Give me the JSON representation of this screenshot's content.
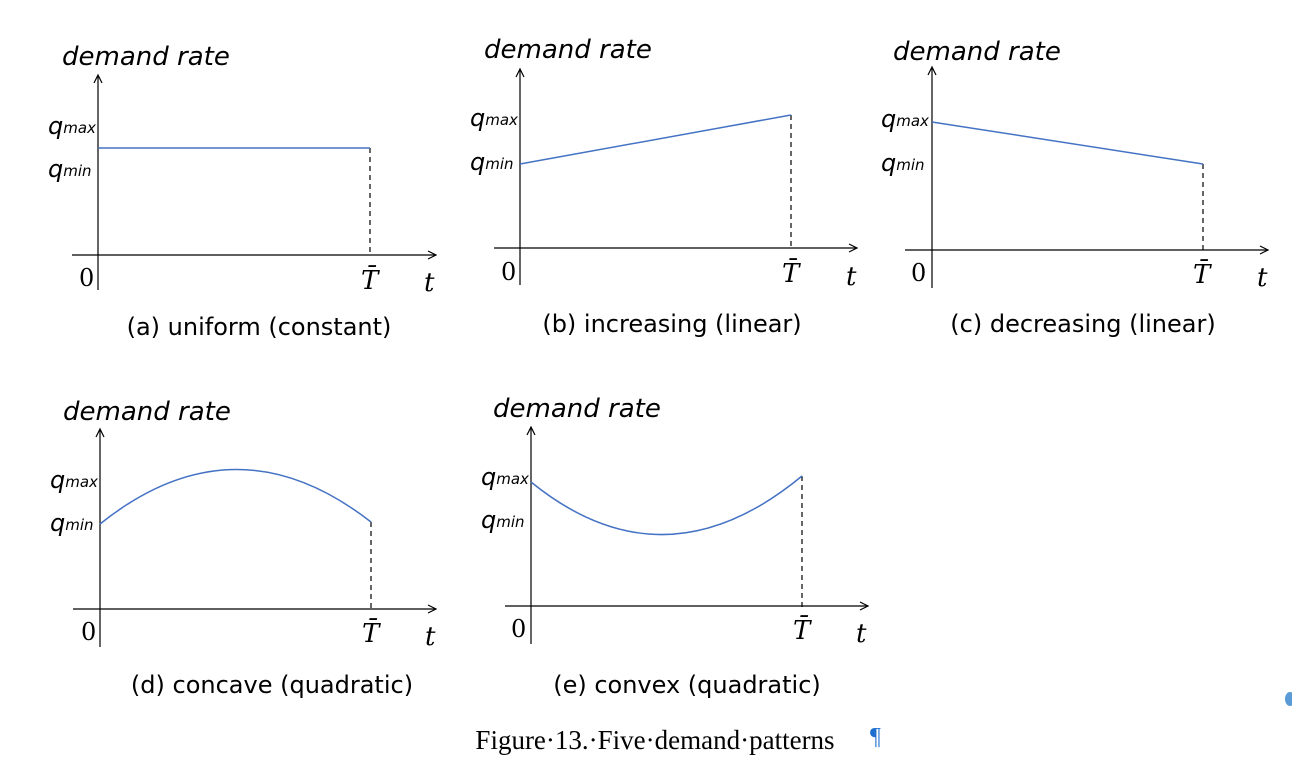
{
  "panels": [
    {
      "ylabel": "demand rate",
      "qmax": {
        "q": "q",
        "sub": "max"
      },
      "qmin": {
        "q": "q",
        "sub": "min"
      },
      "zero": "0",
      "tbar": "T̄",
      "t": "t",
      "caption": "(a) uniform (constant)",
      "pattern": "uniform"
    },
    {
      "ylabel": "demand rate",
      "qmax": {
        "q": "q",
        "sub": "max"
      },
      "qmin": {
        "q": "q",
        "sub": "min"
      },
      "zero": "0",
      "tbar": "T̄",
      "t": "t",
      "caption": "(b) increasing (linear)",
      "pattern": "increasing"
    },
    {
      "ylabel": "demand rate",
      "qmax": {
        "q": "q",
        "sub": "max"
      },
      "qmin": {
        "q": "q",
        "sub": "min"
      },
      "zero": "0",
      "tbar": "T̄",
      "t": "t",
      "caption": "(c) decreasing (linear)",
      "pattern": "decreasing"
    },
    {
      "ylabel": "demand rate",
      "qmax": {
        "q": "q",
        "sub": "max"
      },
      "qmin": {
        "q": "q",
        "sub": "min"
      },
      "zero": "0",
      "tbar": "T̄",
      "t": "t",
      "caption": "(d) concave (quadratic)",
      "pattern": "concave"
    },
    {
      "ylabel": "demand rate",
      "qmax": {
        "q": "q",
        "sub": "max"
      },
      "qmin": {
        "q": "q",
        "sub": "min"
      },
      "zero": "0",
      "tbar": "T̄",
      "t": "t",
      "caption": "(e) convex (quadratic)",
      "pattern": "convex"
    }
  ],
  "figure_caption": {
    "text": "Figure·13.·Five·demand·patterns",
    "pilcrow": "¶"
  },
  "colors": {
    "curve": "#4472c4",
    "axis": "#000000",
    "pilcrow": "#1f6fd1"
  }
}
